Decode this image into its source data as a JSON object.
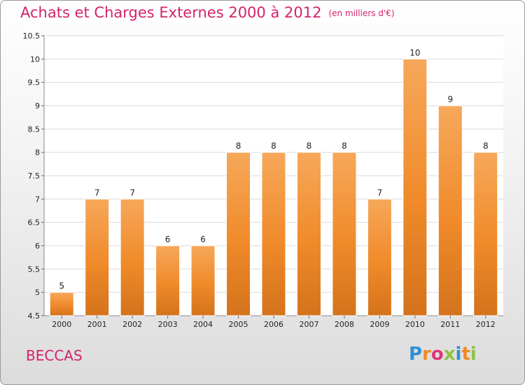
{
  "header": {
    "title": "Achats et Charges Externes 2000 à 2012",
    "unit": "(en milliers d'€)"
  },
  "footer": {
    "commune": "BECCAS",
    "logo": [
      "P",
      "r",
      "o",
      "x",
      "i",
      "t",
      "i"
    ],
    "logo_colors": [
      "#2f8fd6",
      "#f08a24",
      "#e0347a",
      "#8cc43f",
      "#2f8fd6",
      "#f08a24",
      "#8cc43f"
    ]
  },
  "colors": {
    "bar": "#f08a2a",
    "bar_light": "#f6a85a",
    "bar_dark": "#d4731c",
    "text_accent": "#d4236b",
    "grid": "#d9d9d9"
  },
  "chart_data": {
    "type": "bar",
    "categories": [
      "2000",
      "2001",
      "2002",
      "2003",
      "2004",
      "2005",
      "2006",
      "2007",
      "2008",
      "2009",
      "2010",
      "2011",
      "2012"
    ],
    "values": [
      5,
      7,
      7,
      6,
      6,
      8,
      8,
      8,
      8,
      7,
      10,
      9,
      8
    ],
    "ylim": [
      4.5,
      10.5
    ],
    "yticks": [
      "4.5",
      "5",
      "5.5",
      "6",
      "6.5",
      "7",
      "7.5",
      "8",
      "8.5",
      "9",
      "9.5",
      "10",
      "10.5"
    ],
    "title": "Achats et Charges Externes 2000 à 2012",
    "xlabel": "",
    "ylabel": "",
    "grid": true
  }
}
